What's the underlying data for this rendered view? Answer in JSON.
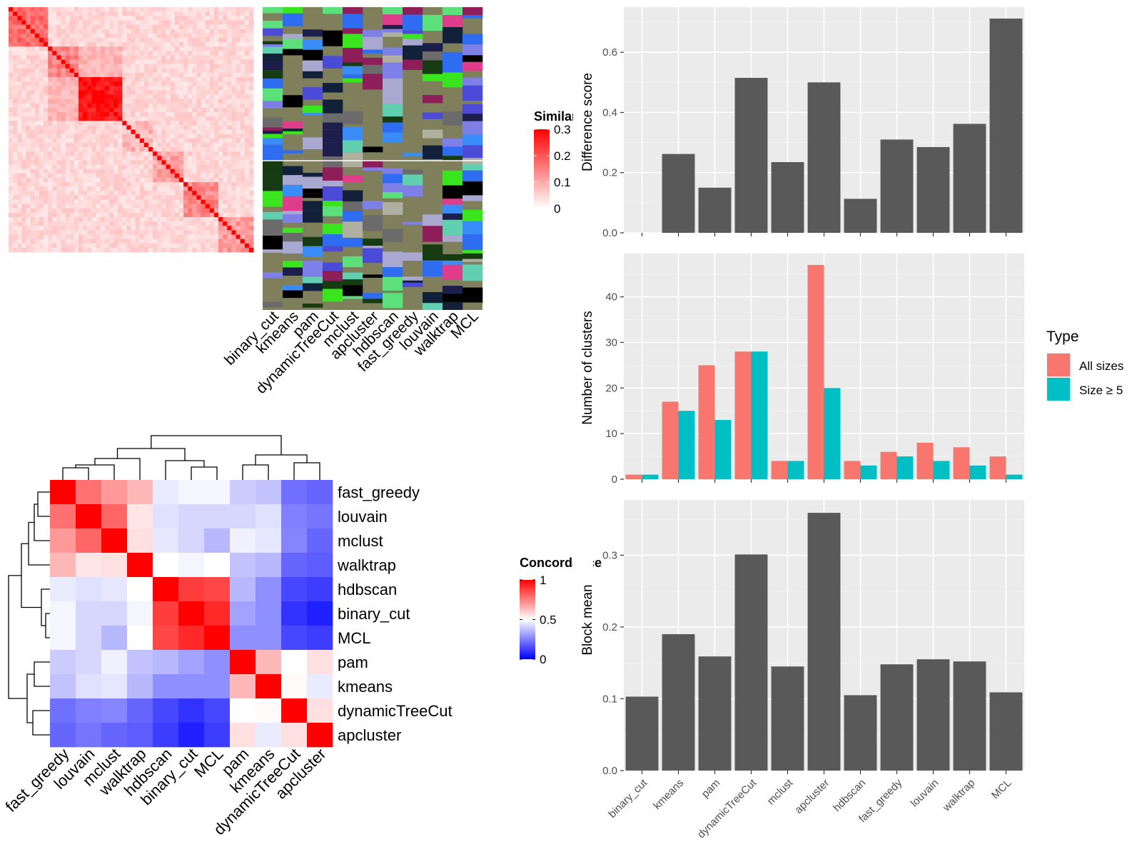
{
  "methods": [
    "binary_cut",
    "kmeans",
    "pam",
    "dynamicTreeCut",
    "mclust",
    "apcluster",
    "hdbscan",
    "fast_greedy",
    "louvain",
    "walktrap",
    "MCL"
  ],
  "similarity_legend": {
    "title": "Similarity",
    "ticks": [
      "0.3",
      "0.2",
      "0.1",
      "0"
    ]
  },
  "concordance_legend": {
    "title": "Concordance",
    "ticks": [
      "1",
      "0.5",
      "0"
    ]
  },
  "concordance_order": [
    "fast_greedy",
    "louvain",
    "mclust",
    "walktrap",
    "hdbscan",
    "binary_cut",
    "MCL",
    "pam",
    "kmeans",
    "dynamicTreeCut",
    "apcluster"
  ],
  "type_legend": {
    "title": "Type",
    "items": [
      {
        "label": "All sizes",
        "color": "#F8766D"
      },
      {
        "label": "Size ≥ 5",
        "color": "#00BFC4"
      }
    ]
  },
  "colors": {
    "panel_bg": "#EBEBEB",
    "bar": "#595959",
    "all_sizes": "#F8766D",
    "size_ge5": "#00BFC4",
    "heat_red": "#FF0000",
    "conc_blue": "#0000FF"
  },
  "chart_data": [
    {
      "type": "heatmap",
      "title": "",
      "legend_title": "Similarity",
      "value_range": [
        0,
        0.3
      ],
      "note_cols": [
        "binary_cut",
        "kmeans",
        "pam",
        "dynamicTreeCut",
        "mclust",
        "apcluster",
        "hdbscan",
        "fast_greedy",
        "louvain",
        "walktrap",
        "MCL"
      ]
    },
    {
      "type": "heatmap",
      "legend_title": "Concordance",
      "rows": [
        "fast_greedy",
        "louvain",
        "mclust",
        "walktrap",
        "hdbscan",
        "binary_cut",
        "MCL",
        "pam",
        "kmeans",
        "dynamicTreeCut",
        "apcluster"
      ],
      "cols": [
        "fast_greedy",
        "louvain",
        "mclust",
        "walktrap",
        "hdbscan",
        "binary_cut",
        "MCL",
        "pam",
        "kmeans",
        "dynamicTreeCut",
        "apcluster"
      ],
      "value_range": [
        0,
        1
      ],
      "values": [
        [
          1.0,
          0.78,
          0.7,
          0.64,
          0.46,
          0.48,
          0.48,
          0.4,
          0.38,
          0.22,
          0.2
        ],
        [
          0.78,
          1.0,
          0.8,
          0.55,
          0.44,
          0.42,
          0.42,
          0.42,
          0.44,
          0.25,
          0.23
        ],
        [
          0.7,
          0.8,
          1.0,
          0.56,
          0.45,
          0.42,
          0.36,
          0.47,
          0.45,
          0.26,
          0.2
        ],
        [
          0.64,
          0.55,
          0.56,
          1.0,
          0.5,
          0.48,
          0.5,
          0.38,
          0.36,
          0.2,
          0.18
        ],
        [
          0.46,
          0.44,
          0.45,
          0.5,
          1.0,
          0.88,
          0.86,
          0.36,
          0.28,
          0.14,
          0.12
        ],
        [
          0.48,
          0.42,
          0.42,
          0.48,
          0.88,
          1.0,
          0.92,
          0.32,
          0.28,
          0.1,
          0.06
        ],
        [
          0.48,
          0.42,
          0.36,
          0.5,
          0.86,
          0.92,
          1.0,
          0.28,
          0.28,
          0.14,
          0.12
        ],
        [
          0.4,
          0.42,
          0.47,
          0.38,
          0.36,
          0.32,
          0.28,
          1.0,
          0.64,
          0.5,
          0.56
        ],
        [
          0.38,
          0.44,
          0.45,
          0.36,
          0.28,
          0.28,
          0.28,
          0.64,
          1.0,
          0.51,
          0.46
        ],
        [
          0.22,
          0.25,
          0.26,
          0.2,
          0.14,
          0.1,
          0.14,
          0.5,
          0.51,
          1.0,
          0.56
        ],
        [
          0.2,
          0.23,
          0.2,
          0.18,
          0.12,
          0.06,
          0.12,
          0.56,
          0.46,
          0.56,
          1.0
        ]
      ]
    },
    {
      "type": "bar",
      "categories": [
        "binary_cut",
        "kmeans",
        "pam",
        "dynamicTreeCut",
        "mclust",
        "apcluster",
        "hdbscan",
        "fast_greedy",
        "louvain",
        "walktrap",
        "MCL"
      ],
      "values": [
        0.0,
        0.262,
        0.15,
        0.515,
        0.235,
        0.5,
        0.113,
        0.31,
        0.285,
        0.362,
        0.712
      ],
      "xlabel": "",
      "ylabel": "Difference score",
      "ylim": [
        0,
        0.75
      ],
      "yticks": [
        0.0,
        0.2,
        0.4,
        0.6
      ]
    },
    {
      "type": "bar",
      "categories": [
        "binary_cut",
        "kmeans",
        "pam",
        "dynamicTreeCut",
        "mclust",
        "apcluster",
        "hdbscan",
        "fast_greedy",
        "louvain",
        "walktrap",
        "MCL"
      ],
      "series": [
        {
          "name": "All sizes",
          "values": [
            1,
            17,
            25,
            28,
            4,
            47,
            4,
            6,
            8,
            7,
            5
          ]
        },
        {
          "name": "Size ≥ 5",
          "values": [
            1,
            15,
            13,
            28,
            4,
            20,
            3,
            5,
            4,
            3,
            1
          ]
        }
      ],
      "xlabel": "",
      "ylabel": "Number of clusters",
      "ylim": [
        0,
        49.5
      ],
      "yticks": [
        0,
        10,
        20,
        30,
        40
      ],
      "legend": "right"
    },
    {
      "type": "bar",
      "categories": [
        "binary_cut",
        "kmeans",
        "pam",
        "dynamicTreeCut",
        "mclust",
        "apcluster",
        "hdbscan",
        "fast_greedy",
        "louvain",
        "walktrap",
        "MCL"
      ],
      "values": [
        0.103,
        0.19,
        0.159,
        0.301,
        0.145,
        0.359,
        0.105,
        0.148,
        0.155,
        0.152,
        0.109
      ],
      "xlabel": "",
      "ylabel": "Block mean",
      "ylim": [
        0,
        0.377
      ],
      "yticks": [
        0.0,
        0.1,
        0.2,
        0.3
      ]
    }
  ]
}
